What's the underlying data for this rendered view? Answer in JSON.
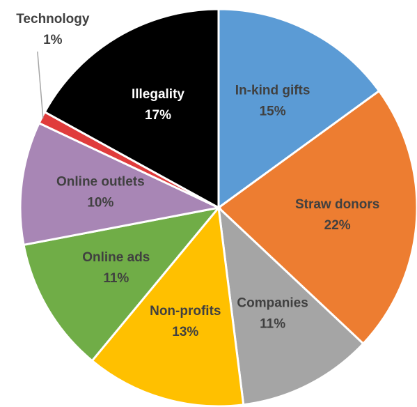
{
  "chart_data": {
    "type": "pie",
    "categories": [
      "In-kind gifts",
      "Straw donors",
      "Companies",
      "Non-profits",
      "Online ads",
      "Online outlets",
      "Technology",
      "Illegality"
    ],
    "values": [
      15,
      22,
      11,
      13,
      11,
      10,
      1,
      17
    ],
    "value_labels": [
      "15%",
      "22%",
      "11%",
      "13%",
      "11%",
      "10%",
      "1%",
      "17%"
    ],
    "colors": [
      "#5b9bd5",
      "#ed7d31",
      "#a5a5a5",
      "#ffc000",
      "#70ad47",
      "#a886b5",
      "#e03c3c",
      "#000000"
    ]
  }
}
